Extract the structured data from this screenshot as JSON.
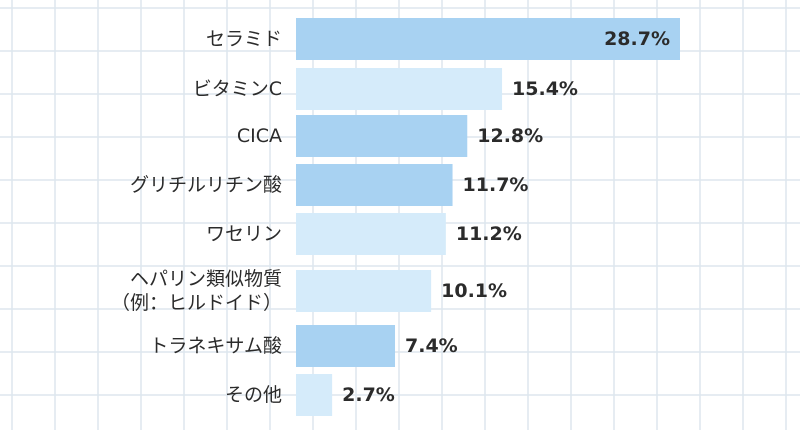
{
  "chart_data": {
    "type": "bar",
    "orientation": "horizontal",
    "categories": [
      [
        "セラミド"
      ],
      [
        "ビタミンC"
      ],
      [
        "CICA"
      ],
      [
        "グリチルリチン酸"
      ],
      [
        "ワセリン"
      ],
      [
        "ヘパリン類似物質",
        "（例：ヒルドイド）"
      ],
      [
        "トラネキサム酸"
      ],
      [
        "その他"
      ]
    ],
    "values": [
      28.7,
      15.4,
      12.8,
      11.7,
      11.2,
      10.1,
      7.4,
      2.7
    ],
    "value_labels": [
      "28.7%",
      "15.4%",
      "12.8%",
      "11.7%",
      "11.2%",
      "10.1%",
      "7.4%",
      "2.7%"
    ],
    "bar_colors": [
      "#a8d2f2",
      "#d5ebfa",
      "#a8d2f2",
      "#a8d2f2",
      "#d5ebfa",
      "#d5ebfa",
      "#a8d2f2",
      "#d5ebfa"
    ],
    "xlim": [
      0,
      30
    ],
    "grid": true,
    "title": "",
    "xlabel": "",
    "ylabel": ""
  }
}
